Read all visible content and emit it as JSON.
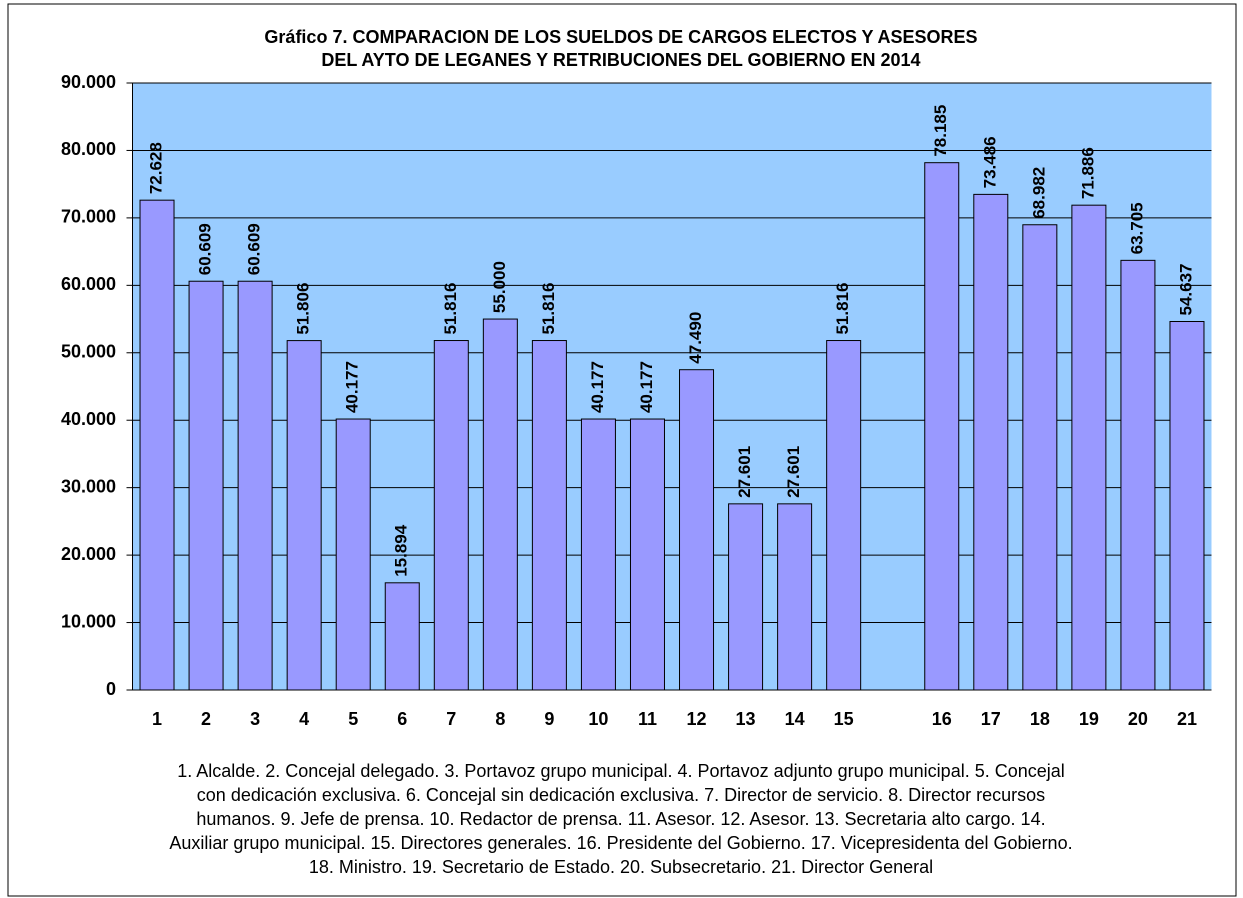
{
  "chart_data": {
    "type": "bar",
    "title": [
      "Gráfico 7. COMPARACION DE LOS SUELDOS DE CARGOS ELECTOS Y ASESORES",
      "DEL AYTO DE LEGANES Y RETRIBUCIONES DEL GOBIERNO EN 2014"
    ],
    "categories": [
      "1",
      "2",
      "3",
      "4",
      "5",
      "6",
      "7",
      "8",
      "9",
      "10",
      "11",
      "12",
      "13",
      "14",
      "15",
      null,
      "16",
      "17",
      "18",
      "19",
      "20",
      "21"
    ],
    "values": [
      72628,
      60609,
      60609,
      51806,
      40177,
      15894,
      51816,
      55000,
      51816,
      40177,
      40177,
      47490,
      27601,
      27601,
      51816,
      null,
      78185,
      73486,
      68982,
      71886,
      63705,
      54637
    ],
    "value_labels": [
      "72.628",
      "60.609",
      "60.609",
      "51.806",
      "40.177",
      "15.894",
      "51.816",
      "55.000",
      "51.816",
      "40.177",
      "40.177",
      "47.490",
      "27.601",
      "27.601",
      "51.816",
      null,
      "78.185",
      "73.486",
      "68.982",
      "71.886",
      "63.705",
      "54.637"
    ],
    "color": "#9999ff",
    "plot_background": "#99ccff",
    "ylim": [
      0,
      90000
    ],
    "yticks": [
      0,
      {
        "value": 10000,
        "label": "10.000"
      },
      {
        "value": 20000,
        "label": "20.000"
      },
      {
        "value": 30000,
        "label": "30.000"
      },
      {
        "value": 40000,
        "label": "40.000"
      },
      {
        "value": 50000,
        "label": "50.000"
      },
      {
        "value": 60000,
        "label": "60.000"
      },
      {
        "value": 70000,
        "label": "70.000"
      },
      {
        "value": 80000,
        "label": "80.000"
      },
      {
        "value": 90000,
        "label": "90.000"
      }
    ],
    "grid": true,
    "caption": [
      "1. Alcalde. 2. Concejal delegado. 3. Portavoz grupo municipal. 4. Portavoz adjunto grupo municipal. 5. Concejal",
      "con dedicación exclusiva. 6. Concejal sin dedicación exclusiva. 7. Director de servicio. 8. Director recursos",
      "humanos. 9. Jefe de prensa. 10. Redactor de prensa. 11. Asesor. 12. Asesor. 13. Secretaria alto cargo. 14.",
      "Auxiliar grupo municipal. 15. Directores generales. 16. Presidente del Gobierno. 17. Vicepresidenta del Gobierno.",
      "18. Ministro. 19. Secretario de Estado. 20. Subsecretario. 21. Director General"
    ]
  }
}
